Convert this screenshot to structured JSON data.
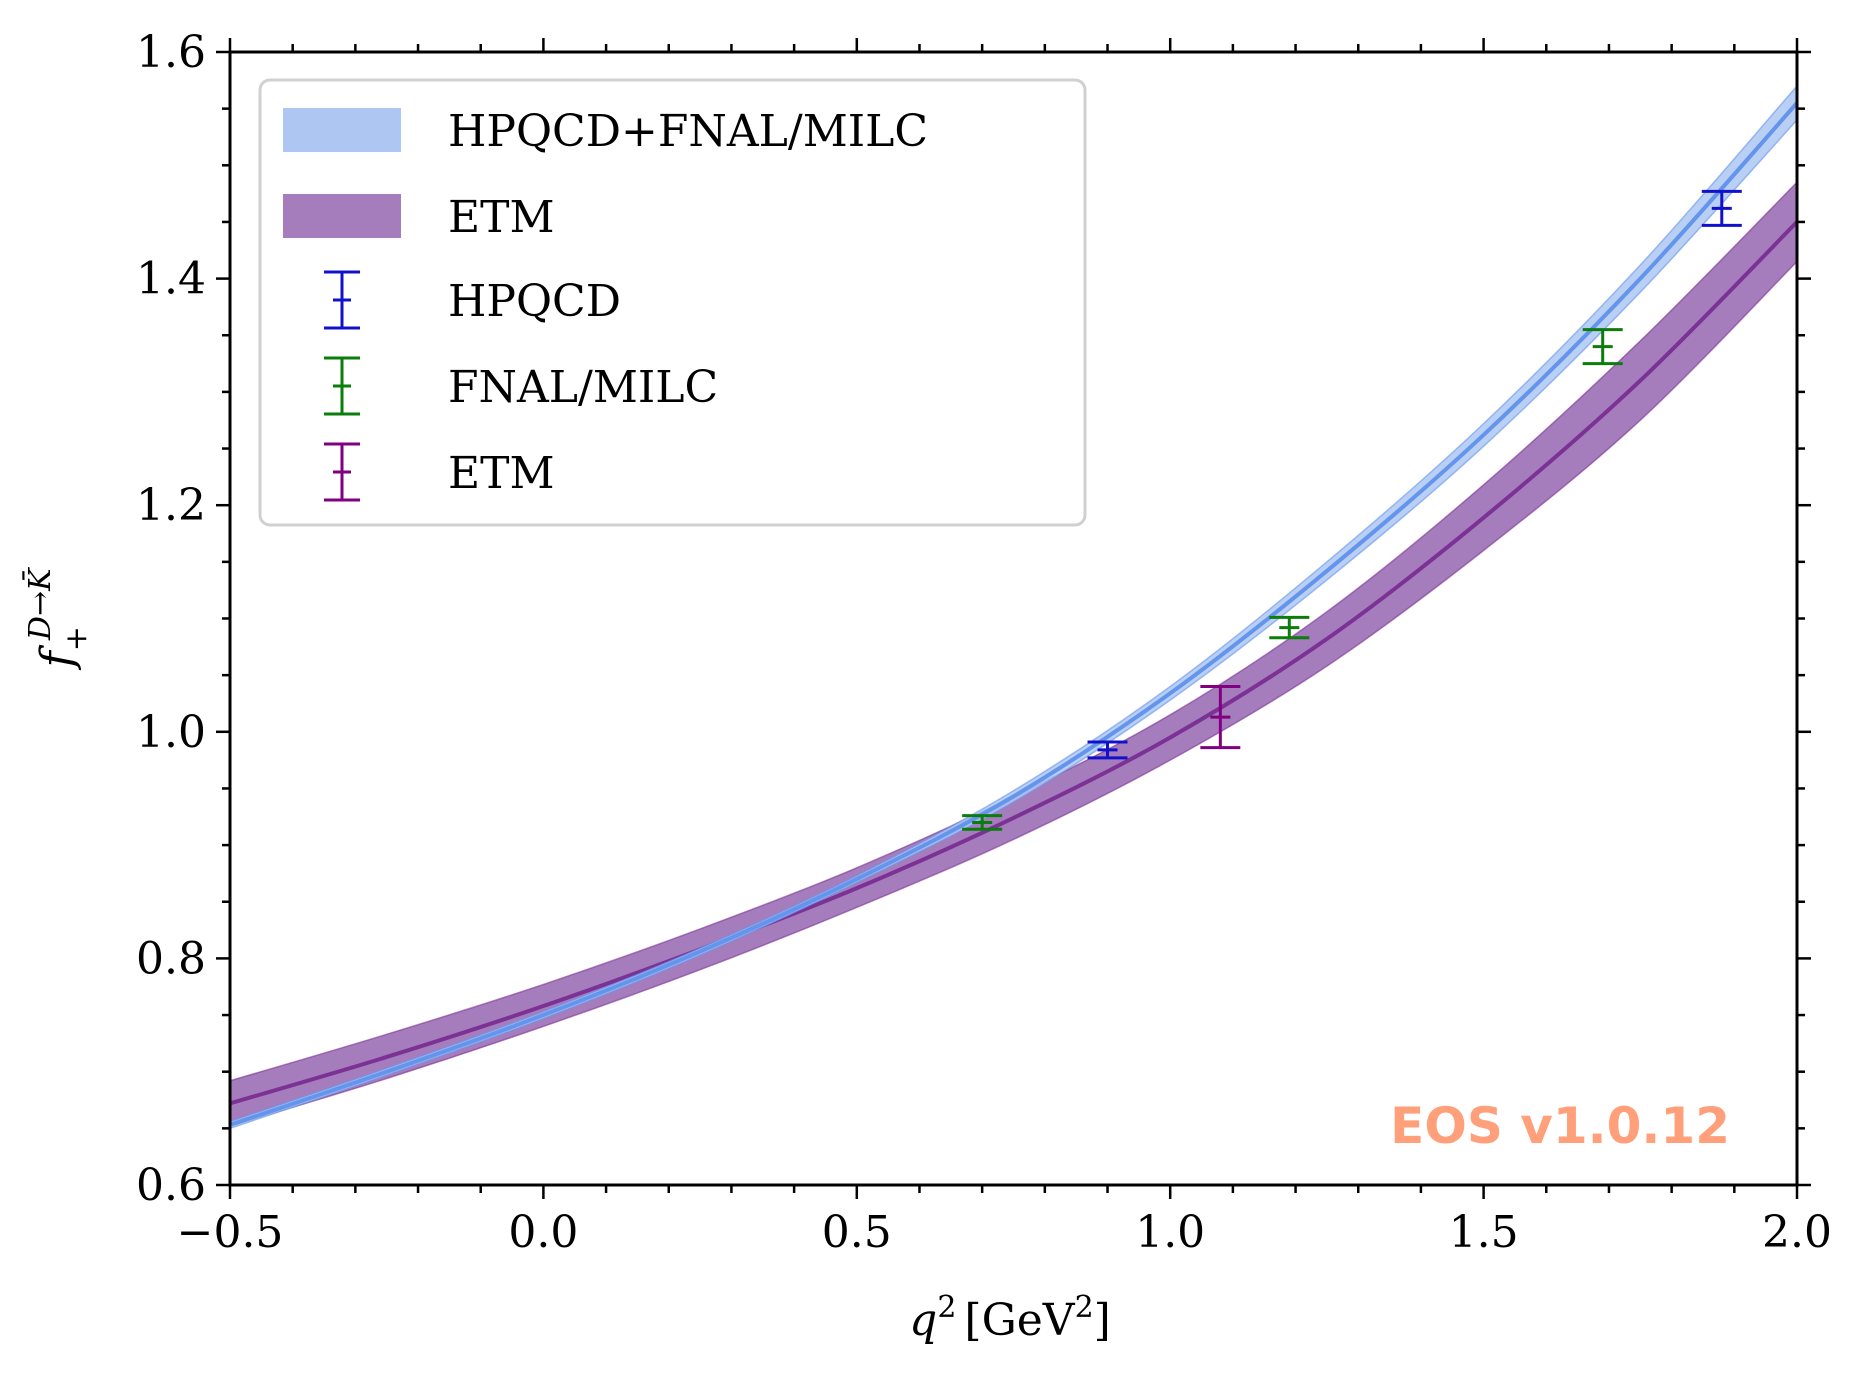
{
  "chart_data": {
    "type": "line",
    "title": "",
    "xlabel": "q^2 [GeV^2]",
    "xlabel_main": "q",
    "xlabel_sup": "2",
    "xlabel_unit_open": "[GeV",
    "xlabel_unit_sup": "2",
    "xlabel_unit_close": "]",
    "ylabel": "f_+^{D→K̄}",
    "ylabel_main": "f",
    "ylabel_sub": "+",
    "ylabel_sup": "D→K̄",
    "xlim": [
      -0.5,
      2.0
    ],
    "ylim": [
      0.6,
      1.6
    ],
    "xticks": [
      "−0.5",
      "0.0",
      "0.5",
      "1.0",
      "1.5",
      "2.0"
    ],
    "xtick_values": [
      -0.5,
      0.0,
      0.5,
      1.0,
      1.5,
      2.0
    ],
    "yticks": [
      "0.6",
      "0.8",
      "1.0",
      "1.2",
      "1.4",
      "1.6"
    ],
    "ytick_values": [
      0.6,
      0.8,
      1.0,
      1.2,
      1.4,
      1.6
    ],
    "grid": false,
    "legend_position": "top-left",
    "bands": [
      {
        "name": "HPQCD+FNAL/MILC",
        "color": "#6495ed",
        "band_color": "#aec7f2",
        "x": [
          -0.5,
          -0.25,
          0.0,
          0.25,
          0.5,
          0.75,
          1.0,
          1.25,
          1.5,
          1.75,
          2.0
        ],
        "central": [
          0.653,
          0.7,
          0.75,
          0.806,
          0.87,
          0.943,
          1.034,
          1.142,
          1.262,
          1.4,
          1.555
        ],
        "lower": [
          0.65,
          0.697,
          0.747,
          0.803,
          0.867,
          0.938,
          1.028,
          1.134,
          1.252,
          1.388,
          1.54
        ],
        "upper": [
          0.656,
          0.703,
          0.753,
          0.809,
          0.873,
          0.948,
          1.04,
          1.15,
          1.272,
          1.412,
          1.57
        ]
      },
      {
        "name": "ETM",
        "color": "#7b3294",
        "band_color": "#a57dbd",
        "x": [
          -0.5,
          -0.25,
          0.0,
          0.25,
          0.5,
          0.75,
          1.0,
          1.25,
          1.5,
          1.75,
          2.0
        ],
        "central": [
          0.672,
          0.713,
          0.758,
          0.808,
          0.862,
          0.924,
          0.995,
          1.082,
          1.189,
          1.31,
          1.45
        ],
        "lower": [
          0.652,
          0.694,
          0.74,
          0.79,
          0.845,
          0.905,
          0.975,
          1.058,
          1.16,
          1.275,
          1.415
        ],
        "upper": [
          0.692,
          0.733,
          0.777,
          0.826,
          0.88,
          0.943,
          1.015,
          1.106,
          1.218,
          1.345,
          1.485
        ]
      }
    ],
    "points": [
      {
        "name": "HPQCD",
        "color": "#1111cc",
        "data": [
          {
            "x": 0.9,
            "y": 0.984,
            "err": 0.007
          },
          {
            "x": 1.88,
            "y": 1.462,
            "err": 0.015
          }
        ]
      },
      {
        "name": "FNAL/MILC",
        "color": "#0b7d0b",
        "data": [
          {
            "x": 0.7,
            "y": 0.92,
            "err": 0.006
          },
          {
            "x": 1.19,
            "y": 1.092,
            "err": 0.009
          },
          {
            "x": 1.69,
            "y": 1.34,
            "err": 0.015
          }
        ]
      },
      {
        "name": "ETM",
        "color": "#800080",
        "data": [
          {
            "x": 1.08,
            "y": 1.013,
            "err": 0.027
          }
        ]
      }
    ],
    "legend": [
      {
        "label": "HPQCD+FNAL/MILC",
        "kind": "band",
        "color": "#aec7f2"
      },
      {
        "label": "ETM",
        "kind": "band",
        "color": "#a57dbd"
      },
      {
        "label": "HPQCD",
        "kind": "errorbar",
        "color": "#1111cc"
      },
      {
        "label": "FNAL/MILC",
        "kind": "errorbar",
        "color": "#0b7d0b"
      },
      {
        "label": "ETM",
        "kind": "errorbar",
        "color": "#800080"
      }
    ],
    "watermark": "EOS v1.0.12",
    "watermark_color": "#ffa07a"
  }
}
